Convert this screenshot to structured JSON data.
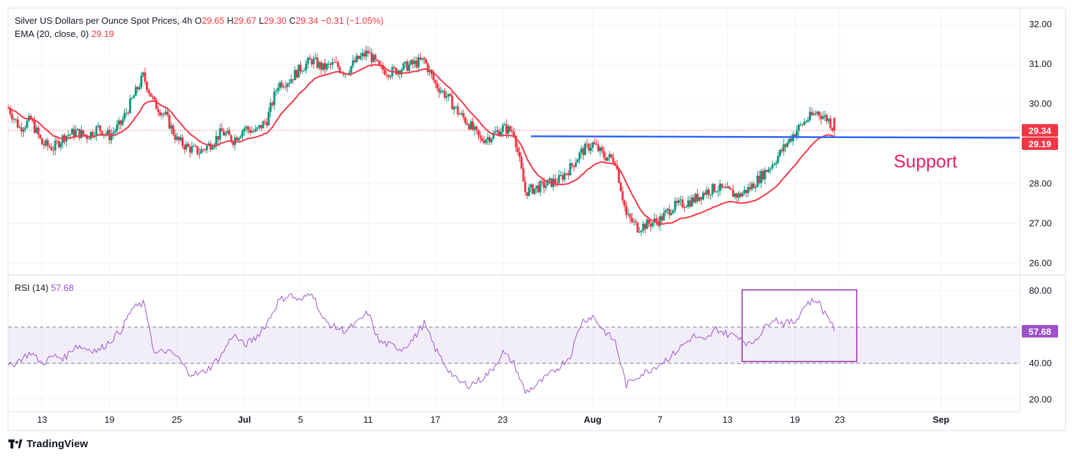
{
  "chart_data": {
    "type": "candlestick",
    "symbol_title": "Silver US Dollars per Ounce Spot Prices, 4h",
    "ohlc_legend": {
      "O_label": "O",
      "O": "29.65",
      "H_label": "H",
      "H": "29.67",
      "L_label": "L",
      "L": "29.30",
      "C_label": "C",
      "C": "29.34",
      "change": "−0.31 (−1.05%)"
    },
    "ema_legend": {
      "label": "EMA (20, close, 0)",
      "value": "29.19"
    },
    "rsi_legend": {
      "label": "RSI (14)",
      "value": "57.68"
    },
    "price_axis": {
      "ylim": [
        25.75,
        32.4
      ],
      "ticks": [
        "32.00",
        "31.00",
        "30.00",
        "29.00",
        "28.00",
        "27.00",
        "26.00"
      ]
    },
    "rsi_axis": {
      "ylim": [
        15,
        88
      ],
      "ticks": [
        "80.00",
        "40.00",
        "20.00"
      ],
      "bands": [
        60,
        40
      ]
    },
    "x_axis": {
      "labels": [
        {
          "text": "13",
          "day": 13
        },
        {
          "text": "19",
          "day": 19
        },
        {
          "text": "25",
          "day": 25
        },
        {
          "text": "Jul",
          "day": 31,
          "bold": true
        },
        {
          "text": "5",
          "day": 36
        },
        {
          "text": "11",
          "day": 42
        },
        {
          "text": "17",
          "day": 48
        },
        {
          "text": "23",
          "day": 54
        },
        {
          "text": "Aug",
          "day": 62,
          "bold": true
        },
        {
          "text": "7",
          "day": 68
        },
        {
          "text": "13",
          "day": 74
        },
        {
          "text": "19",
          "day": 80
        },
        {
          "text": "23",
          "day": 84
        },
        {
          "text": "Sep",
          "day": 93,
          "bold": true
        }
      ],
      "day_range": [
        10,
        100
      ]
    },
    "close_anchors": [
      [
        10,
        29.9
      ],
      [
        11,
        29.4
      ],
      [
        12,
        29.6
      ],
      [
        13,
        29.0
      ],
      [
        14,
        28.9
      ],
      [
        15,
        29.2
      ],
      [
        16,
        29.3
      ],
      [
        17,
        29.2
      ],
      [
        18,
        29.4
      ],
      [
        19,
        29.2
      ],
      [
        20,
        29.5
      ],
      [
        21,
        30.1
      ],
      [
        22,
        30.7
      ],
      [
        23,
        30.0
      ],
      [
        24,
        29.7
      ],
      [
        25,
        29.1
      ],
      [
        26,
        28.9
      ],
      [
        27,
        28.8
      ],
      [
        28,
        29.0
      ],
      [
        29,
        29.3
      ],
      [
        30,
        29.1
      ],
      [
        31,
        29.4
      ],
      [
        32,
        29.3
      ],
      [
        33,
        29.6
      ],
      [
        34,
        30.5
      ],
      [
        35,
        30.6
      ],
      [
        36,
        30.9
      ],
      [
        37,
        31.1
      ],
      [
        38,
        30.9
      ],
      [
        39,
        31.0
      ],
      [
        40,
        30.8
      ],
      [
        41,
        31.1
      ],
      [
        42,
        31.3
      ],
      [
        43,
        30.9
      ],
      [
        44,
        30.8
      ],
      [
        45,
        30.9
      ],
      [
        46,
        31.0
      ],
      [
        47,
        31.1
      ],
      [
        48,
        30.5
      ],
      [
        49,
        30.2
      ],
      [
        50,
        29.8
      ],
      [
        51,
        29.5
      ],
      [
        52,
        29.1
      ],
      [
        53,
        29.2
      ],
      [
        54,
        29.4
      ],
      [
        55,
        29.3
      ],
      [
        56,
        27.8
      ],
      [
        57,
        27.9
      ],
      [
        58,
        28.0
      ],
      [
        59,
        28.1
      ],
      [
        60,
        28.4
      ],
      [
        61,
        28.8
      ],
      [
        62,
        29.0
      ],
      [
        63,
        28.7
      ],
      [
        64,
        28.6
      ],
      [
        65,
        27.2
      ],
      [
        66,
        26.9
      ],
      [
        67,
        27.0
      ],
      [
        68,
        27.1
      ],
      [
        69,
        27.4
      ],
      [
        70,
        27.5
      ],
      [
        71,
        27.6
      ],
      [
        72,
        27.8
      ],
      [
        73,
        27.9
      ],
      [
        74,
        27.8
      ],
      [
        75,
        27.7
      ],
      [
        76,
        27.9
      ],
      [
        77,
        28.2
      ],
      [
        78,
        28.5
      ],
      [
        79,
        28.9
      ],
      [
        80,
        29.3
      ],
      [
        81,
        29.6
      ],
      [
        82,
        29.8
      ],
      [
        83,
        29.6
      ],
      [
        83.5,
        29.34
      ]
    ],
    "rsi_anchors": [
      [
        10,
        38
      ],
      [
        11,
        42
      ],
      [
        12,
        46
      ],
      [
        13,
        40
      ],
      [
        14,
        44
      ],
      [
        15,
        43
      ],
      [
        16,
        50
      ],
      [
        17,
        48
      ],
      [
        18,
        47
      ],
      [
        19,
        52
      ],
      [
        20,
        58
      ],
      [
        21,
        70
      ],
      [
        22,
        73
      ],
      [
        22.5,
        62
      ],
      [
        23,
        45
      ],
      [
        24,
        47
      ],
      [
        25,
        44
      ],
      [
        26,
        35
      ],
      [
        27,
        34
      ],
      [
        28,
        38
      ],
      [
        29,
        45
      ],
      [
        30,
        56
      ],
      [
        31,
        50
      ],
      [
        32,
        54
      ],
      [
        33,
        62
      ],
      [
        34,
        74
      ],
      [
        35,
        78
      ],
      [
        36,
        74
      ],
      [
        37,
        80
      ],
      [
        38,
        64
      ],
      [
        39,
        60
      ],
      [
        40,
        58
      ],
      [
        41,
        62
      ],
      [
        42,
        68
      ],
      [
        43,
        52
      ],
      [
        44,
        50
      ],
      [
        45,
        48
      ],
      [
        46,
        53
      ],
      [
        47,
        62
      ],
      [
        48,
        48
      ],
      [
        49,
        38
      ],
      [
        50,
        30
      ],
      [
        51,
        28
      ],
      [
        52,
        31
      ],
      [
        53,
        36
      ],
      [
        54,
        46
      ],
      [
        55,
        40
      ],
      [
        56,
        24
      ],
      [
        57,
        28
      ],
      [
        58,
        33
      ],
      [
        59,
        38
      ],
      [
        60,
        44
      ],
      [
        61,
        63
      ],
      [
        62,
        66
      ],
      [
        63,
        58
      ],
      [
        64,
        52
      ],
      [
        65,
        28
      ],
      [
        66,
        33
      ],
      [
        67,
        36
      ],
      [
        68,
        40
      ],
      [
        69,
        44
      ],
      [
        70,
        50
      ],
      [
        71,
        55
      ],
      [
        72,
        52
      ],
      [
        73,
        59
      ],
      [
        74,
        56
      ],
      [
        75,
        55
      ],
      [
        76,
        50
      ],
      [
        77,
        57
      ],
      [
        78,
        65
      ],
      [
        79,
        62
      ],
      [
        80,
        63
      ],
      [
        81,
        73
      ],
      [
        82,
        75
      ],
      [
        82.5,
        69
      ],
      [
        83,
        66
      ],
      [
        83.5,
        57.68
      ]
    ],
    "support": {
      "label": "Support",
      "value": 29.19,
      "day_start": 56.5,
      "color": "#2962ff"
    },
    "last_price": {
      "value": 29.34,
      "label": "29.34",
      "color": "#f23645"
    },
    "last_ema": {
      "value": 29.19,
      "label": "29.19",
      "color": "#f23645"
    },
    "last_rsi": {
      "value": 57.68,
      "label": "57.68",
      "color": "#9c52c8"
    },
    "rsi_highlight_box": {
      "day_start": 75.3,
      "day_end": 85.5,
      "rsi_top": 80.5,
      "rsi_bottom": 41
    },
    "colors": {
      "up": "#089981",
      "down": "#f23645",
      "ema": "#f23645",
      "rsi": "#9c52c8",
      "grid": "#f0f3fa"
    }
  },
  "footer": {
    "brand": "TradingView"
  }
}
